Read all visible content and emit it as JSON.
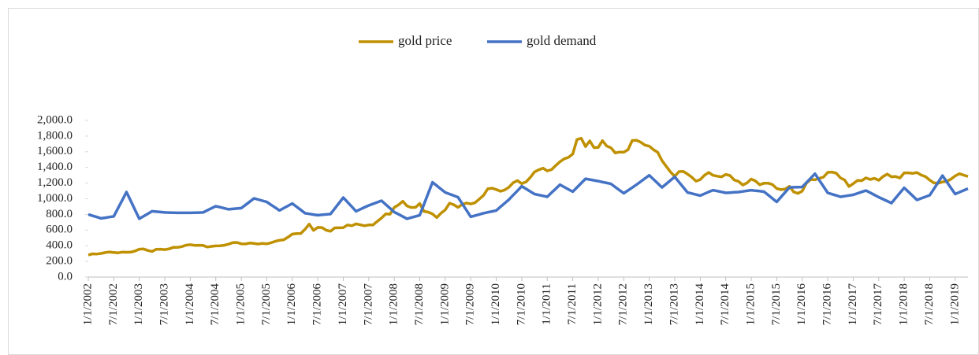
{
  "chart_data": {
    "type": "line",
    "categories": [
      "1/1/2002",
      null,
      null,
      null,
      null,
      null,
      "7/1/2002",
      null,
      null,
      null,
      null,
      null,
      "1/1/2003",
      null,
      null,
      null,
      null,
      null,
      "7/1/2003",
      null,
      null,
      null,
      null,
      null,
      "1/1/2004",
      null,
      null,
      null,
      null,
      null,
      "7/1/2004",
      null,
      null,
      null,
      null,
      null,
      "1/1/2005",
      null,
      null,
      null,
      null,
      null,
      "7/1/2005",
      null,
      null,
      null,
      null,
      null,
      "1/1/2006",
      null,
      null,
      null,
      null,
      null,
      "7/1/2006",
      null,
      null,
      null,
      null,
      null,
      "1/1/2007",
      null,
      null,
      null,
      null,
      null,
      "7/1/2007",
      null,
      null,
      null,
      null,
      null,
      "1/1/2008",
      null,
      null,
      null,
      null,
      null,
      "7/1/2008",
      null,
      null,
      null,
      null,
      null,
      "1/1/2009",
      null,
      null,
      null,
      null,
      null,
      "7/1/2009",
      null,
      null,
      null,
      null,
      null,
      "1/1/2010",
      null,
      null,
      null,
      null,
      null,
      "7/1/2010",
      null,
      null,
      null,
      null,
      null,
      "1/1/2011",
      null,
      null,
      null,
      null,
      null,
      "7/1/2011",
      null,
      null,
      null,
      null,
      null,
      "1/1/2012",
      null,
      null,
      null,
      null,
      null,
      "7/1/2012",
      null,
      null,
      null,
      null,
      null,
      "1/1/2013",
      null,
      null,
      null,
      null,
      null,
      "7/1/2013",
      null,
      null,
      null,
      null,
      null,
      "1/1/2014",
      null,
      null,
      null,
      null,
      null,
      "7/1/2014",
      null,
      null,
      null,
      null,
      null,
      "1/1/2015",
      null,
      null,
      null,
      null,
      null,
      "7/1/2015",
      null,
      null,
      null,
      null,
      null,
      "1/1/2016",
      null,
      null,
      null,
      null,
      null,
      "7/1/2016",
      null,
      null,
      null,
      null,
      null,
      "1/1/2017",
      null,
      null,
      null,
      null,
      null,
      "7/1/2017",
      null,
      null,
      null,
      null,
      null,
      "1/1/2018",
      null,
      null,
      null,
      null,
      null,
      "7/1/2018",
      null,
      null,
      null,
      null,
      null,
      "1/1/2019",
      null,
      null,
      null
    ],
    "series": [
      {
        "name": "gold price",
        "color": "#bf9000",
        "values": [
          282,
          296,
          294,
          302,
          314,
          321,
          314,
          310,
          319,
          317,
          319,
          333,
          356,
          359,
          340,
          328,
          355,
          356,
          351,
          360,
          379,
          379,
          389,
          407,
          414,
          405,
          406,
          404,
          384,
          392,
          398,
          400,
          406,
          420,
          439,
          442,
          424,
          423,
          434,
          429,
          422,
          430,
          424,
          438,
          456,
          470,
          476,
          510,
          549,
          555,
          557,
          610,
          676,
          596,
          634,
          632,
          598,
          585,
          628,
          629,
          631,
          665,
          655,
          679,
          667,
          655,
          665,
          665,
          712,
          754,
          806,
          803,
          889,
          922,
          968,
          909,
          888,
          890,
          939,
          839,
          829,
          806,
          760,
          816,
          858,
          943,
          924,
          890,
          928,
          946,
          934,
          949,
          996,
          1043,
          1127,
          1135,
          1118,
          1095,
          1113,
          1148,
          1205,
          1232,
          1193,
          1215,
          1271,
          1343,
          1370,
          1391,
          1356,
          1372,
          1424,
          1473,
          1510,
          1529,
          1572,
          1756,
          1772,
          1666,
          1739,
          1652,
          1656,
          1742,
          1673,
          1650,
          1585,
          1596,
          1594,
          1626,
          1744,
          1747,
          1722,
          1684,
          1671,
          1627,
          1593,
          1487,
          1414,
          1343,
          1286,
          1347,
          1349,
          1316,
          1275,
          1225,
          1244,
          1300,
          1336,
          1299,
          1288,
          1279,
          1311,
          1296,
          1239,
          1222,
          1176,
          1202,
          1251,
          1227,
          1179,
          1198,
          1199,
          1181,
          1131,
          1117,
          1125,
          1159,
          1086,
          1068,
          1097,
          1200,
          1246,
          1242,
          1260,
          1276,
          1337,
          1341,
          1326,
          1266,
          1238,
          1157,
          1192,
          1234,
          1231,
          1266,
          1246,
          1260,
          1236,
          1283,
          1315,
          1280,
          1283,
          1265,
          1331,
          1331,
          1325,
          1335,
          1303,
          1282,
          1238,
          1202,
          1198,
          1215,
          1221,
          1250,
          1291,
          1320,
          1302,
          1284
        ]
      },
      {
        "name": "gold demand",
        "color": "#4472c4",
        "values": [
          800,
          783,
          767,
          750,
          758,
          767,
          775,
          878,
          982,
          1085,
          972,
          858,
          745,
          777,
          808,
          840,
          835,
          830,
          825,
          823,
          822,
          820,
          820,
          820,
          820,
          822,
          823,
          825,
          852,
          878,
          905,
          892,
          878,
          865,
          870,
          875,
          880,
          922,
          963,
          1005,
          990,
          975,
          960,
          923,
          887,
          850,
          880,
          910,
          940,
          898,
          857,
          815,
          807,
          798,
          790,
          795,
          800,
          805,
          875,
          945,
          1015,
          957,
          898,
          840,
          865,
          890,
          915,
          935,
          955,
          975,
          927,
          878,
          830,
          802,
          773,
          745,
          760,
          775,
          790,
          930,
          1070,
          1210,
          1167,
          1123,
          1080,
          1060,
          1040,
          1020,
          937,
          853,
          770,
          785,
          800,
          815,
          827,
          838,
          850,
          897,
          943,
          990,
          1047,
          1103,
          1160,
          1127,
          1093,
          1060,
          1048,
          1037,
          1025,
          1077,
          1128,
          1180,
          1150,
          1120,
          1090,
          1145,
          1200,
          1255,
          1245,
          1235,
          1225,
          1213,
          1202,
          1190,
          1150,
          1110,
          1070,
          1107,
          1143,
          1180,
          1220,
          1260,
          1300,
          1248,
          1197,
          1145,
          1190,
          1235,
          1280,
          1213,
          1147,
          1080,
          1067,
          1053,
          1040,
          1063,
          1087,
          1110,
          1098,
          1087,
          1075,
          1078,
          1082,
          1085,
          1093,
          1102,
          1110,
          1103,
          1097,
          1090,
          1047,
          1003,
          960,
          1022,
          1083,
          1145,
          1147,
          1148,
          1150,
          1207,
          1263,
          1320,
          1238,
          1157,
          1075,
          1058,
          1042,
          1025,
          1033,
          1042,
          1050,
          1068,
          1087,
          1105,
          1077,
          1048,
          1020,
          995,
          970,
          945,
          1010,
          1075,
          1140,
          1088,
          1037,
          985,
          1005,
          1025,
          1045,
          1128,
          1212,
          1295,
          1217,
          1138,
          1060,
          1083,
          1107,
          1130
        ]
      }
    ],
    "ylim": [
      0,
      2000
    ],
    "yticks": [
      {
        "value": 0,
        "label": "0.0"
      },
      {
        "value": 200,
        "label": "200.0"
      },
      {
        "value": 400,
        "label": "400.0"
      },
      {
        "value": 600,
        "label": "600.0"
      },
      {
        "value": 800,
        "label": "800.0"
      },
      {
        "value": 1000,
        "label": "1,000.0"
      },
      {
        "value": 1200,
        "label": "1,200.0"
      },
      {
        "value": 1400,
        "label": "1,400.0"
      },
      {
        "value": 1600,
        "label": "1,600.0"
      },
      {
        "value": 1800,
        "label": "1,800.0"
      },
      {
        "value": 2000,
        "label": "2,000.0"
      }
    ],
    "legend": "top"
  }
}
